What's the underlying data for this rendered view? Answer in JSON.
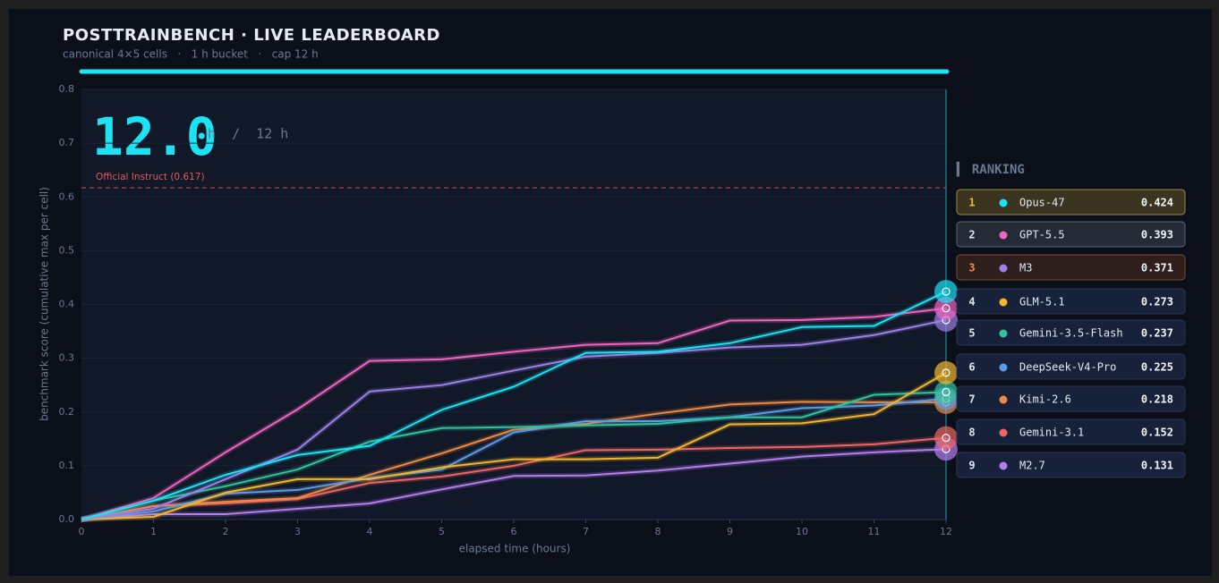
{
  "chart_data": {
    "type": "line",
    "title": "POSTTRAINBENCH  ·  LIVE LEADERBOARD",
    "subtitle": "canonical 4×5 cells   ·   1 h bucket   ·   cap 12 h",
    "clock": "12.0",
    "clock_unit": "h  /  12 h",
    "x_label": "elapsed time (hours)",
    "y_label": "benchmark score (cumulative max per cell)",
    "reference": {
      "value": 0.617,
      "label": "Official Instruct (0.617)",
      "color": "#e05a5a"
    },
    "x": [
      0,
      1,
      2,
      3,
      4,
      5,
      6,
      7,
      8,
      9,
      10,
      11,
      12
    ],
    "xlim": [
      0,
      12
    ],
    "xticks": [
      0,
      1,
      2,
      3,
      4,
      5,
      6,
      7,
      8,
      9,
      10,
      11,
      12
    ],
    "ylim": [
      0,
      0.8
    ],
    "yticks": [
      {
        "value": 0,
        "label": "0.0"
      },
      0.1,
      0.2,
      0.3,
      0.4,
      0.5,
      0.6,
      0.7,
      0.8
    ],
    "grid": true,
    "series": [
      {
        "name": "Opus-47",
        "color": "#19e3f5",
        "values": [
          0,
          0.035,
          0.083,
          0.12,
          0.137,
          0.204,
          0.247,
          0.31,
          0.312,
          0.328,
          0.358,
          0.36,
          0.424
        ]
      },
      {
        "name": "GPT-5.5",
        "color": "#f064c0",
        "values": [
          0,
          0.04,
          0.125,
          0.205,
          0.295,
          0.298,
          0.312,
          0.325,
          0.328,
          0.37,
          0.371,
          0.377,
          0.393
        ]
      },
      {
        "name": "M3",
        "color": "#9d80ea",
        "values": [
          0,
          0.02,
          0.075,
          0.13,
          0.238,
          0.25,
          0.277,
          0.303,
          0.31,
          0.32,
          0.325,
          0.343,
          0.371
        ]
      },
      {
        "name": "GLM-5.1",
        "color": "#f2b62c",
        "values": [
          0,
          0.005,
          0.05,
          0.075,
          0.075,
          0.097,
          0.112,
          0.112,
          0.115,
          0.177,
          0.179,
          0.196,
          0.273
        ]
      },
      {
        "name": "Gemini-3.5-Flash",
        "color": "#2ec49e",
        "values": [
          0,
          0.035,
          0.062,
          0.093,
          0.145,
          0.17,
          0.172,
          0.175,
          0.178,
          0.19,
          0.19,
          0.232,
          0.237
        ]
      },
      {
        "name": "DeepSeek-V4-Pro",
        "color": "#5c9ce6",
        "values": [
          0,
          0.015,
          0.048,
          0.055,
          0.077,
          0.093,
          0.162,
          0.183,
          0.183,
          0.19,
          0.207,
          0.212,
          0.225
        ]
      },
      {
        "name": "Kimi-2.6",
        "color": "#f08a40",
        "values": [
          0,
          0.025,
          0.033,
          0.04,
          0.083,
          0.123,
          0.167,
          0.178,
          0.197,
          0.214,
          0.219,
          0.218,
          0.218
        ]
      },
      {
        "name": "Gemini-3.1",
        "color": "#ee6663",
        "values": [
          0,
          0.025,
          0.03,
          0.038,
          0.068,
          0.08,
          0.1,
          0.129,
          0.13,
          0.133,
          0.135,
          0.14,
          0.152
        ]
      },
      {
        "name": "M2.7",
        "color": "#b67cf0",
        "values": [
          0,
          0.01,
          0.01,
          0.02,
          0.03,
          0.056,
          0.081,
          0.082,
          0.091,
          0.104,
          0.117,
          0.125,
          0.131
        ]
      }
    ],
    "ranking": {
      "title": "▍ RANKING",
      "ranks": [
        1,
        2,
        3,
        4,
        5,
        6,
        7,
        8,
        9
      ]
    }
  }
}
